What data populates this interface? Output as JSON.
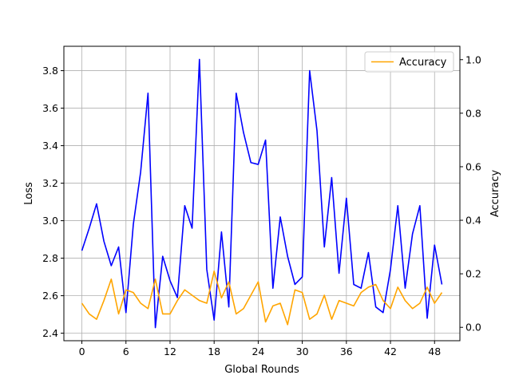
{
  "chart_data": {
    "type": "line",
    "xlabel": "Global Rounds",
    "ylabel_left": "Loss",
    "ylabel_right": "Accuracy",
    "x_ticks": [
      0,
      6,
      12,
      18,
      24,
      30,
      36,
      42,
      48
    ],
    "y_left_ticks": [
      2.4,
      2.6,
      2.8,
      3.0,
      3.2,
      3.4,
      3.6,
      3.8
    ],
    "y_right_ticks": [
      0.0,
      0.2,
      0.4,
      0.6,
      0.8,
      1.0
    ],
    "x_range": [
      -2.45,
      51.45
    ],
    "y_left_range": [
      2.36,
      3.93
    ],
    "y_right_range": [
      -0.05,
      1.05
    ],
    "grid": true,
    "legend_position": "upper right",
    "legend": [
      {
        "label": "Accuracy",
        "color": "#ffa500"
      }
    ],
    "series": [
      {
        "axis": "left",
        "color": "#0000ff",
        "x": [
          0,
          1,
          2,
          3,
          4,
          5,
          6,
          7,
          8,
          9,
          10,
          11,
          12,
          13,
          14,
          15,
          16,
          17,
          18,
          19,
          20,
          21,
          22,
          23,
          24,
          25,
          26,
          27,
          28,
          29,
          30,
          31,
          32,
          33,
          34,
          35,
          36,
          37,
          38,
          39,
          40,
          41,
          42,
          43,
          44,
          45,
          46,
          47,
          48,
          49
        ],
        "values": [
          2.84,
          2.96,
          3.09,
          2.89,
          2.76,
          2.86,
          2.51,
          2.98,
          3.26,
          3.68,
          2.43,
          2.81,
          2.68,
          2.59,
          3.08,
          2.96,
          3.86,
          2.74,
          2.47,
          2.94,
          2.54,
          3.68,
          3.47,
          3.31,
          3.3,
          3.43,
          2.64,
          3.02,
          2.81,
          2.66,
          2.7,
          3.8,
          3.48,
          2.86,
          3.23,
          2.72,
          3.12,
          2.66,
          2.64,
          2.83,
          2.54,
          2.51,
          2.74,
          3.08,
          2.64,
          2.93,
          3.08,
          2.48,
          2.87,
          2.66
        ]
      },
      {
        "name": "Accuracy",
        "axis": "right",
        "color": "#ffa500",
        "x": [
          0,
          1,
          2,
          3,
          4,
          5,
          6,
          7,
          8,
          9,
          10,
          11,
          12,
          13,
          14,
          15,
          16,
          17,
          18,
          19,
          20,
          21,
          22,
          23,
          24,
          25,
          26,
          27,
          28,
          29,
          30,
          31,
          32,
          33,
          34,
          35,
          36,
          37,
          38,
          39,
          40,
          41,
          42,
          43,
          44,
          45,
          46,
          47,
          48,
          49
        ],
        "values": [
          0.09,
          0.05,
          0.03,
          0.1,
          0.18,
          0.05,
          0.14,
          0.13,
          0.09,
          0.07,
          0.18,
          0.05,
          0.05,
          0.1,
          0.14,
          0.12,
          0.1,
          0.09,
          0.21,
          0.11,
          0.17,
          0.05,
          0.07,
          0.12,
          0.17,
          0.02,
          0.08,
          0.09,
          0.01,
          0.14,
          0.13,
          0.03,
          0.05,
          0.12,
          0.03,
          0.1,
          0.09,
          0.08,
          0.13,
          0.15,
          0.16,
          0.1,
          0.07,
          0.15,
          0.1,
          0.07,
          0.09,
          0.15,
          0.09,
          0.13
        ]
      }
    ]
  }
}
